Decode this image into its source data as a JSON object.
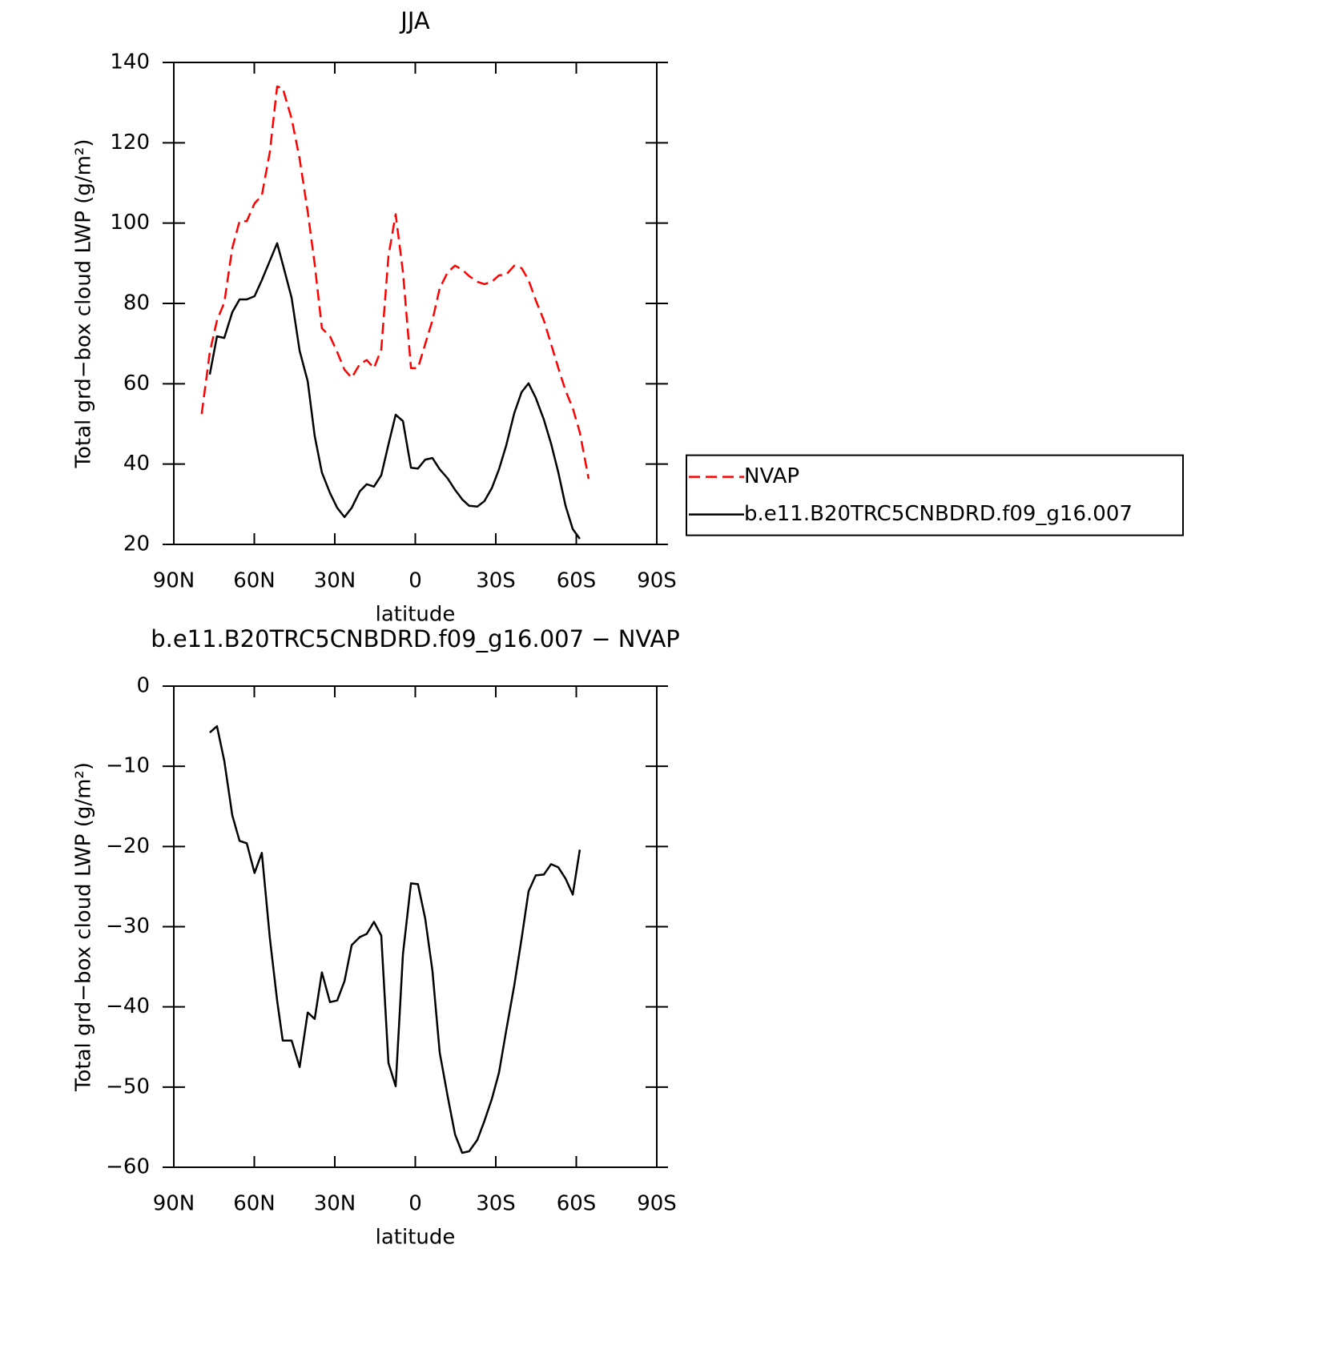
{
  "chart_data": [
    {
      "type": "line",
      "title": "JJA",
      "xlabel": "latitude",
      "ylabel": "Total grd−box cloud LWP (g/m²)",
      "x": [
        79.6,
        76.6,
        73.9,
        71.2,
        68.2,
        65.5,
        62.8,
        59.9,
        57.2,
        54.2,
        51.5,
        49.4,
        46.1,
        43.1,
        40.1,
        37.5,
        34.8,
        31.8,
        29.1,
        26.4,
        23.7,
        20.7,
        18.1,
        15.4,
        12.7,
        10.0,
        7.3,
        4.6,
        1.6,
        -1.0,
        -3.7,
        -6.4,
        -9.1,
        -12.1,
        -14.8,
        -17.5,
        -20.1,
        -23.1,
        -25.8,
        -28.5,
        -31.2,
        -33.9,
        -36.9,
        -39.6,
        -42.2,
        -44.9,
        -47.9,
        -50.6,
        -53.3,
        -56.0,
        -58.7,
        -61.3,
        -64.6
      ],
      "xlim": [
        90,
        -90
      ],
      "xticks": [
        {
          "value": 90,
          "label": "90N"
        },
        {
          "value": 60,
          "label": "60N"
        },
        {
          "value": 30,
          "label": "30N"
        },
        0,
        {
          "value": -30,
          "label": "30S"
        },
        {
          "value": -60,
          "label": "60S"
        },
        {
          "value": -90,
          "label": "90S"
        }
      ],
      "ylim": [
        20,
        140
      ],
      "yticks": [
        20,
        40,
        60,
        80,
        100,
        120,
        140
      ],
      "legend": "right",
      "series": [
        {
          "name": "NVAP",
          "color": "#ff0000",
          "line_style": "dashed",
          "values": [
            52.5,
            67.8,
            75.8,
            80.2,
            93.8,
            100.5,
            100.5,
            104.9,
            106.9,
            117.7,
            134,
            133.6,
            126,
            116,
            102.8,
            89.8,
            73.8,
            71.8,
            67.9,
            63.5,
            61.5,
            64.9,
            65.9,
            63.9,
            68.5,
            91.8,
            102.2,
            87.8,
            63.9,
            63.9,
            69.9,
            75.8,
            83.8,
            87.8,
            89.4,
            88.4,
            86.8,
            85.4,
            84.8,
            85.4,
            87,
            87.2,
            89.4,
            88.8,
            85.8,
            80.8,
            75.8,
            69.9,
            63.9,
            58.3,
            53.9,
            47.9,
            36.3
          ]
        },
        {
          "name": "b.e11.B20TRC5CNBDRD.f09_g16.007",
          "color": "#000000",
          "line_style": "solid",
          "values": [
            null,
            62.3,
            71.8,
            71.4,
            77.8,
            81,
            81,
            81.8,
            85.8,
            90.6,
            95,
            89.8,
            81.4,
            68.2,
            60.6,
            47,
            37.9,
            32.8,
            29.1,
            26.8,
            29.1,
            33.2,
            35,
            34.4,
            37.2,
            44.9,
            52.3,
            50.7,
            39.1,
            38.9,
            41.1,
            41.5,
            38.7,
            36.4,
            33.6,
            31.2,
            29.6,
            29.4,
            30.8,
            34,
            38.7,
            44.7,
            52.7,
            57.9,
            60.1,
            56.5,
            51.1,
            45.1,
            37.9,
            29.6,
            23.8,
            21.4,
            null
          ]
        }
      ]
    },
    {
      "type": "line",
      "title": "b.e11.B20TRC5CNBDRD.f09_g16.007 − NVAP",
      "xlabel": "latitude",
      "ylabel": "Total grd−box cloud LWP (g/m²)",
      "x": [
        76.6,
        73.9,
        71.2,
        68.2,
        65.5,
        62.8,
        59.9,
        57.2,
        54.2,
        51.5,
        49.4,
        46.1,
        43.1,
        40.1,
        37.5,
        34.8,
        31.8,
        29.1,
        26.4,
        23.7,
        20.7,
        18.1,
        15.4,
        12.7,
        10.0,
        7.3,
        4.6,
        1.6,
        -1.0,
        -3.7,
        -6.4,
        -9.1,
        -12.1,
        -14.8,
        -17.5,
        -20.1,
        -23.1,
        -25.8,
        -28.5,
        -31.2,
        -33.9,
        -36.9,
        -39.6,
        -42.2,
        -44.9,
        -47.9,
        -50.6,
        -53.3,
        -56.0,
        -58.7,
        -61.3
      ],
      "xlim": [
        90,
        -90
      ],
      "xticks": [
        {
          "value": 90,
          "label": "90N"
        },
        {
          "value": 60,
          "label": "60N"
        },
        {
          "value": 30,
          "label": "30N"
        },
        0,
        {
          "value": -30,
          "label": "30S"
        },
        {
          "value": -60,
          "label": "60S"
        },
        {
          "value": -90,
          "label": "90S"
        }
      ],
      "ylim": [
        -60,
        0
      ],
      "yticks": [
        {
          "value": -60,
          "label": "−60"
        },
        {
          "value": -50,
          "label": "−50"
        },
        {
          "value": -40,
          "label": "−40"
        },
        {
          "value": -30,
          "label": "−30"
        },
        {
          "value": -20,
          "label": "−20"
        },
        {
          "value": -10,
          "label": "−10"
        },
        0
      ],
      "series": [
        {
          "color": "#000000",
          "line_style": "solid",
          "values": [
            -5.8,
            -5.0,
            -9.3,
            -16.1,
            -19.3,
            -19.6,
            -23.3,
            -20.8,
            -31.4,
            -39.2,
            -44.2,
            -44.2,
            -47.5,
            -40.7,
            -41.5,
            -35.7,
            -39.4,
            -39.2,
            -36.8,
            -32.3,
            -31.3,
            -30.9,
            -29.4,
            -31.1,
            -47,
            -49.9,
            -33.4,
            -24.6,
            -24.7,
            -29,
            -35.5,
            -45.7,
            -51.2,
            -55.9,
            -58.2,
            -58,
            -56.6,
            -54.2,
            -51.5,
            -48.2,
            -42.9,
            -37.3,
            -31.5,
            -25.6,
            -23.6,
            -23.5,
            -22.2,
            -22.6,
            -24,
            -26,
            -20.4
          ]
        }
      ]
    }
  ]
}
